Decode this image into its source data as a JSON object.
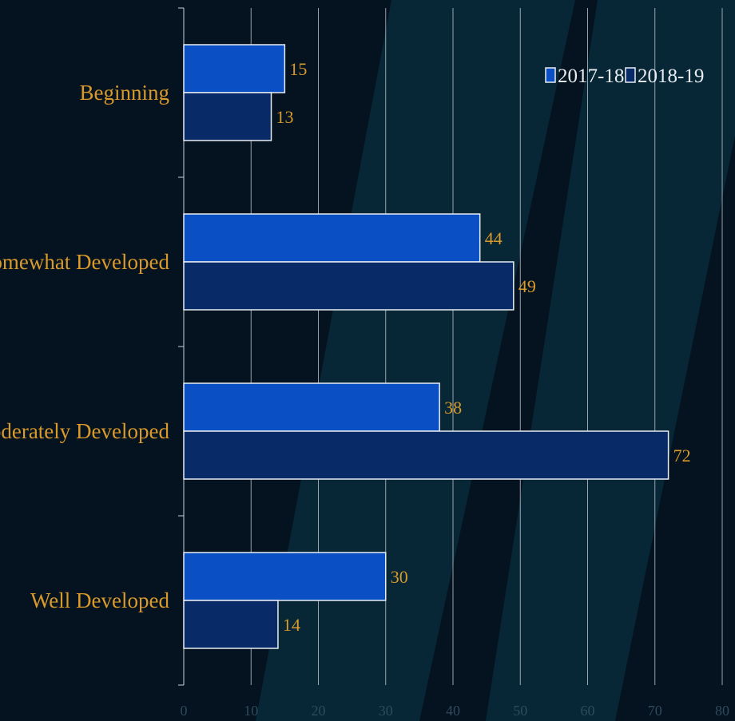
{
  "chart_data": {
    "type": "bar",
    "orientation": "horizontal",
    "categories": [
      "Beginning",
      "Somewhat Developed",
      "Moderately Developed",
      "Well Developed"
    ],
    "series": [
      {
        "name": "2017-18",
        "values": [
          15,
          44,
          38,
          30
        ],
        "color": "#0a4fc4"
      },
      {
        "name": "2018-19",
        "values": [
          13,
          49,
          72,
          14
        ],
        "color": "#082a66"
      }
    ],
    "xlim": [
      0,
      80
    ],
    "xticks": [
      0,
      10,
      20,
      30,
      40,
      50,
      60,
      70,
      80
    ],
    "title": "",
    "xlabel": "",
    "ylabel": "",
    "grid": true,
    "legend_position": "top-right"
  },
  "colors": {
    "background": "#04131f",
    "stripe": "#082736",
    "label": "#d99a2b",
    "bar_edge": "#e8edf2"
  }
}
